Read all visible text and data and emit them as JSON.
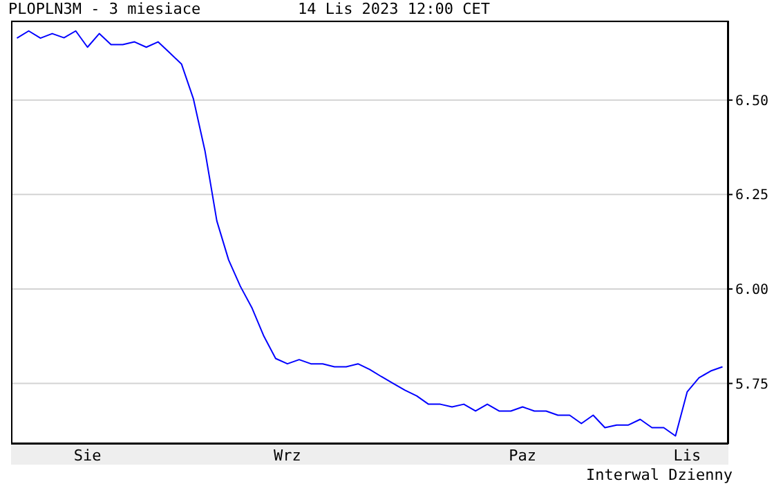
{
  "chart_data": {
    "type": "line",
    "title": "PLOPLN3M - 3 miesiace",
    "subtitle": "14 Lis 2023 12:00 CET",
    "annotations": [
      "Interwal Dzienny"
    ],
    "categories": [
      null,
      null,
      null,
      null,
      null,
      null,
      "Sie",
      null,
      null,
      null,
      null,
      null,
      null,
      null,
      null,
      null,
      null,
      null,
      null,
      null,
      null,
      null,
      null,
      "Wrz",
      null,
      null,
      null,
      null,
      null,
      null,
      null,
      null,
      null,
      null,
      null,
      null,
      null,
      null,
      null,
      null,
      null,
      null,
      null,
      "Paz",
      null,
      null,
      null,
      null,
      null,
      null,
      null,
      null,
      null,
      null,
      null,
      null,
      null,
      "Lis",
      null,
      null,
      null
    ],
    "series": [
      {
        "color": "#0000ff",
        "values": [
          6.664,
          6.683,
          6.664,
          6.676,
          6.665,
          6.683,
          6.64,
          6.676,
          6.647,
          6.647,
          6.654,
          6.64,
          6.654,
          6.625,
          6.595,
          6.504,
          6.364,
          6.18,
          6.077,
          6.007,
          5.949,
          5.875,
          5.816,
          5.802,
          5.813,
          5.802,
          5.802,
          5.794,
          5.794,
          5.802,
          5.787,
          5.768,
          5.75,
          5.732,
          5.717,
          5.695,
          5.695,
          5.688,
          5.695,
          5.677,
          5.695,
          5.677,
          5.677,
          5.688,
          5.677,
          5.677,
          5.666,
          5.666,
          5.644,
          5.666,
          5.633,
          5.64,
          5.64,
          5.655,
          5.633,
          5.633,
          5.611,
          5.728,
          5.765,
          5.783,
          5.794
        ]
      }
    ],
    "ylim": [
      5.59,
      6.71
    ],
    "yticks": [
      5.75,
      {
        "value": 6.0,
        "label": "6.00"
      },
      6.25,
      {
        "value": 6.5,
        "label": "6.50"
      }
    ],
    "grid": "y",
    "marker": "none",
    "line_style": "solid"
  }
}
